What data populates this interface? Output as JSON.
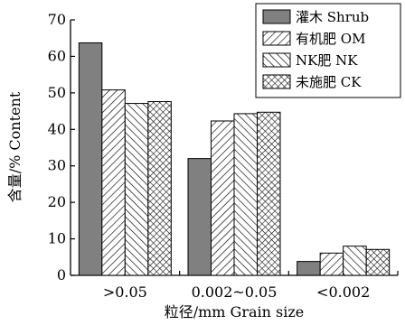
{
  "chart_data": {
    "type": "bar",
    "title": "",
    "xlabel": "粒径/mm  Grain size",
    "ylabel": "含量/%  Content",
    "categories": [
      ">0.05",
      "0.002~0.05",
      "<0.002"
    ],
    "ylim": [
      0,
      70
    ],
    "yticks": [
      "0",
      "10",
      "20",
      "30",
      "40",
      "50",
      "60",
      "70"
    ],
    "grid": false,
    "legend_position": "top-right",
    "series": [
      {
        "name": "灌木 Shrub",
        "pattern": "solid-gray",
        "values": [
          63.7,
          32.0,
          3.8
        ]
      },
      {
        "name": "有机肥 OM",
        "pattern": "forward-hatch",
        "values": [
          50.8,
          42.3,
          6.1
        ]
      },
      {
        "name": "NK肥 NK",
        "pattern": "backward-hatch",
        "values": [
          47.1,
          44.3,
          8.0
        ]
      },
      {
        "name": "未施肥 CK",
        "pattern": "cross-hatch",
        "values": [
          47.6,
          44.7,
          7.1
        ]
      }
    ]
  }
}
